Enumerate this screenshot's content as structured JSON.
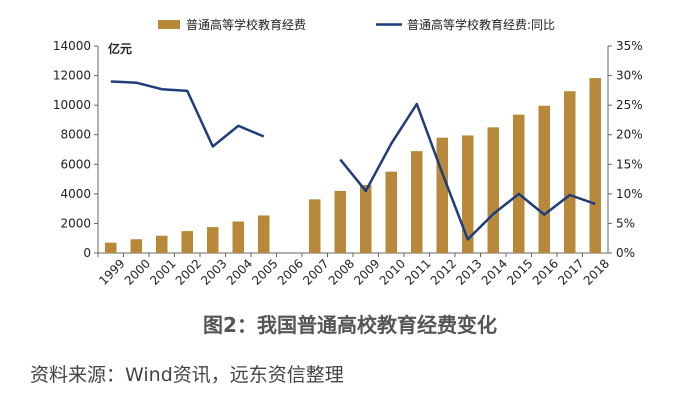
{
  "chart_data": {
    "type": "bar",
    "categories": [
      "1999",
      "2000",
      "2001",
      "2002",
      "2003",
      "2004",
      "2005",
      "2006",
      "2007",
      "2008",
      "2009",
      "2010",
      "2011",
      "2012",
      "2013",
      "2014",
      "2015",
      "2016",
      "2017",
      "2018"
    ],
    "series": [
      {
        "name": "普通高等学校教育经费",
        "type": "bar",
        "axis": "left",
        "color": "#B8893A",
        "values": [
          700,
          930,
          1170,
          1480,
          1750,
          2130,
          2540,
          null,
          3630,
          4200,
          4600,
          5500,
          6890,
          7800,
          7950,
          8500,
          9360,
          9960,
          10940,
          11830
        ]
      },
      {
        "name": "普通高等学校教育经费:同比",
        "type": "line",
        "axis": "right",
        "color": "#1F3D7A",
        "values": [
          29.0,
          28.8,
          27.7,
          27.4,
          18.0,
          21.5,
          19.7,
          null,
          null,
          15.8,
          10.5,
          18.5,
          25.2,
          13.5,
          2.3,
          6.6,
          10.0,
          6.5,
          9.8,
          8.3
        ]
      }
    ],
    "y_left": {
      "ticks": [
        "0",
        "2000",
        "4000",
        "6000",
        "8000",
        "10000",
        "12000",
        "14000"
      ],
      "range": [
        0,
        14000
      ],
      "unit_label": "亿元"
    },
    "y_right": {
      "ticks": [
        "0%",
        "5%",
        "10%",
        "15%",
        "20%",
        "25%",
        "30%",
        "35%"
      ],
      "range": [
        0,
        35
      ]
    },
    "grid": false,
    "legend_position": "top"
  },
  "caption": "图2：我国普通高校教育经费变化",
  "source": "资料来源：Wind资讯，远东资信整理"
}
